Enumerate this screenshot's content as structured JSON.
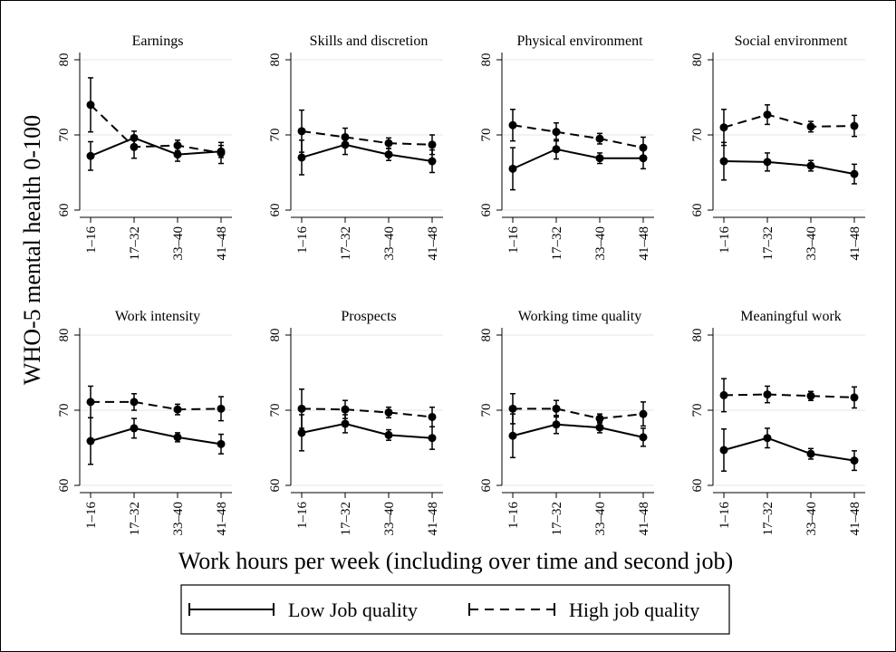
{
  "figure": {
    "ylabel": "WHO-5 mental health 0-100",
    "xlabel": "Work hours per week (including over time and second job)"
  },
  "legend": {
    "low_label": "Low Job quality",
    "high_label": "High job quality"
  },
  "chart_data": [
    {
      "type": "line",
      "title": "Earnings",
      "categories": [
        "1–16",
        "17–32",
        "33–40",
        "41–48"
      ],
      "ylim": [
        60,
        80
      ],
      "yticks": [
        "60",
        "70",
        "80"
      ],
      "series": [
        {
          "name": "Low Job quality",
          "values": [
            67.2,
            69.6,
            67.4,
            67.8
          ],
          "ci_low": [
            65.3,
            68.7,
            66.5,
            67.0
          ],
          "ci_high": [
            69.1,
            70.5,
            68.3,
            68.6
          ]
        },
        {
          "name": "High job quality",
          "values": [
            74.0,
            68.4,
            68.6,
            67.6
          ],
          "ci_low": [
            70.4,
            66.9,
            67.9,
            66.2
          ],
          "ci_high": [
            77.6,
            69.9,
            69.3,
            69.0
          ]
        }
      ]
    },
    {
      "type": "line",
      "title": "Skills and discretion",
      "categories": [
        "1–16",
        "17–32",
        "33–40",
        "41–48"
      ],
      "ylim": [
        60,
        80
      ],
      "yticks": [
        "60",
        "70",
        "80"
      ],
      "series": [
        {
          "name": "Low Job quality",
          "values": [
            67.0,
            68.7,
            67.4,
            66.5
          ],
          "ci_low": [
            64.7,
            67.4,
            66.6,
            65.0
          ],
          "ci_high": [
            69.3,
            70.0,
            68.2,
            68.0
          ]
        },
        {
          "name": "High job quality",
          "values": [
            70.5,
            69.7,
            68.9,
            68.7
          ],
          "ci_low": [
            67.7,
            68.5,
            68.2,
            67.4
          ],
          "ci_high": [
            73.3,
            70.9,
            69.6,
            70.0
          ]
        }
      ]
    },
    {
      "type": "line",
      "title": "Physical environment",
      "categories": [
        "1–16",
        "17–32",
        "33–40",
        "41–48"
      ],
      "ylim": [
        60,
        80
      ],
      "yticks": [
        "60",
        "70",
        "80"
      ],
      "series": [
        {
          "name": "Low Job quality",
          "values": [
            65.5,
            68.1,
            66.9,
            66.9
          ],
          "ci_low": [
            62.7,
            66.8,
            66.2,
            65.5
          ],
          "ci_high": [
            68.3,
            69.4,
            67.6,
            68.3
          ]
        },
        {
          "name": "High job quality",
          "values": [
            71.3,
            70.4,
            69.5,
            68.3
          ],
          "ci_low": [
            69.2,
            69.2,
            68.8,
            66.9
          ],
          "ci_high": [
            73.4,
            71.6,
            70.2,
            69.7
          ]
        }
      ]
    },
    {
      "type": "line",
      "title": "Social environment",
      "categories": [
        "1–16",
        "17–32",
        "33–40",
        "41–48"
      ],
      "ylim": [
        60,
        80
      ],
      "yticks": [
        "60",
        "70",
        "80"
      ],
      "series": [
        {
          "name": "Low Job quality",
          "values": [
            66.5,
            66.4,
            65.9,
            64.8
          ],
          "ci_low": [
            64.0,
            65.2,
            65.2,
            63.5
          ],
          "ci_high": [
            69.0,
            67.6,
            66.6,
            66.1
          ]
        },
        {
          "name": "High job quality",
          "values": [
            71.0,
            72.7,
            71.1,
            71.2
          ],
          "ci_low": [
            68.6,
            71.4,
            70.4,
            69.8
          ],
          "ci_high": [
            73.4,
            74.0,
            71.8,
            72.6
          ]
        }
      ]
    },
    {
      "type": "line",
      "title": "Work intensity",
      "categories": [
        "1–16",
        "17–32",
        "33–40",
        "41–48"
      ],
      "ylim": [
        60,
        80
      ],
      "yticks": [
        "60",
        "70",
        "80"
      ],
      "series": [
        {
          "name": "Low Job quality",
          "values": [
            65.9,
            67.6,
            66.4,
            65.5
          ],
          "ci_low": [
            62.8,
            66.3,
            65.8,
            64.2
          ],
          "ci_high": [
            69.0,
            68.9,
            67.0,
            66.8
          ]
        },
        {
          "name": "High job quality",
          "values": [
            71.1,
            71.1,
            70.1,
            70.2
          ],
          "ci_low": [
            69.0,
            70.0,
            69.4,
            68.6
          ],
          "ci_high": [
            73.2,
            72.2,
            70.8,
            71.8
          ]
        }
      ]
    },
    {
      "type": "line",
      "title": "Prospects",
      "categories": [
        "1–16",
        "17–32",
        "33–40",
        "41–48"
      ],
      "ylim": [
        60,
        80
      ],
      "yticks": [
        "60",
        "70",
        "80"
      ],
      "series": [
        {
          "name": "Low Job quality",
          "values": [
            67.0,
            68.2,
            66.7,
            66.3
          ],
          "ci_low": [
            64.6,
            67.0,
            66.0,
            64.8
          ],
          "ci_high": [
            69.4,
            69.4,
            67.4,
            67.8
          ]
        },
        {
          "name": "High job quality",
          "values": [
            70.2,
            70.1,
            69.7,
            69.1
          ],
          "ci_low": [
            67.6,
            68.9,
            69.0,
            67.8
          ],
          "ci_high": [
            72.8,
            71.3,
            70.4,
            70.4
          ]
        }
      ]
    },
    {
      "type": "line",
      "title": "Working time quality",
      "categories": [
        "1–16",
        "17–32",
        "33–40",
        "41–48"
      ],
      "ylim": [
        60,
        80
      ],
      "yticks": [
        "60",
        "70",
        "80"
      ],
      "series": [
        {
          "name": "Low Job quality",
          "values": [
            66.6,
            68.1,
            67.7,
            66.4
          ],
          "ci_low": [
            63.7,
            66.9,
            67.0,
            65.2
          ],
          "ci_high": [
            69.5,
            69.3,
            68.4,
            67.6
          ]
        },
        {
          "name": "High job quality",
          "values": [
            70.2,
            70.2,
            68.9,
            69.5
          ],
          "ci_low": [
            68.2,
            69.1,
            68.3,
            67.9
          ],
          "ci_high": [
            72.2,
            71.3,
            69.5,
            71.1
          ]
        }
      ]
    },
    {
      "type": "line",
      "title": "Meaningful work",
      "categories": [
        "1–16",
        "17–32",
        "33–40",
        "41–48"
      ],
      "ylim": [
        60,
        80
      ],
      "yticks": [
        "60",
        "70",
        "80"
      ],
      "series": [
        {
          "name": "Low Job quality",
          "values": [
            64.7,
            66.3,
            64.2,
            63.3
          ],
          "ci_low": [
            61.9,
            65.0,
            63.5,
            62.0
          ],
          "ci_high": [
            67.5,
            67.6,
            64.9,
            64.6
          ]
        },
        {
          "name": "High job quality",
          "values": [
            72.0,
            72.1,
            71.9,
            71.7
          ],
          "ci_low": [
            69.8,
            71.0,
            71.3,
            70.3
          ],
          "ci_high": [
            74.2,
            73.2,
            72.5,
            73.1
          ]
        }
      ]
    }
  ]
}
